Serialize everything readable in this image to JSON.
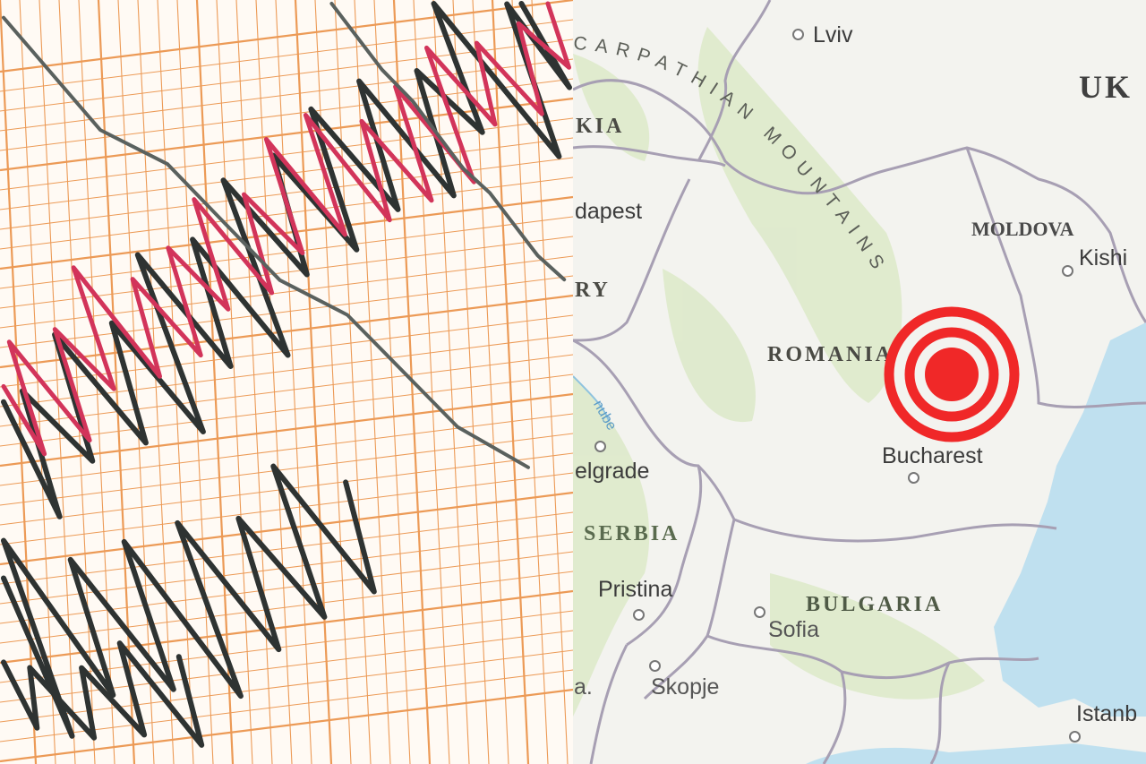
{
  "map": {
    "cities": [
      {
        "name": "Lviv"
      },
      {
        "name": "dapest"
      },
      {
        "name": "Kishi"
      },
      {
        "name": "Bucharest"
      },
      {
        "name": "elgrade"
      },
      {
        "name": "Pristina"
      },
      {
        "name": "Sofia"
      },
      {
        "name": "Skopje"
      },
      {
        "name": "a."
      },
      {
        "name": "Istanb"
      }
    ],
    "countries": [
      {
        "name": "UK"
      },
      {
        "name": "KIA"
      },
      {
        "name": "RY"
      },
      {
        "name": "MOLDOVA"
      },
      {
        "name": "ROMANIA"
      },
      {
        "name": "SERBIA"
      },
      {
        "name": "BULGARIA"
      }
    ],
    "mountain_label": "CARPATHIAN MOUNTAINS",
    "river_label": "nube",
    "epicenter_icon": "earthquake-epicenter-icon",
    "colors": {
      "epicenter": "#f02828",
      "sea": "#bfe0ef",
      "border": "#a79fb3",
      "relief": "#d9e6c4"
    }
  },
  "seismograph": {
    "colors": {
      "grid": "#ec9a56",
      "trace_dark": "#2e3332",
      "trace_red": "#d2345a"
    }
  }
}
